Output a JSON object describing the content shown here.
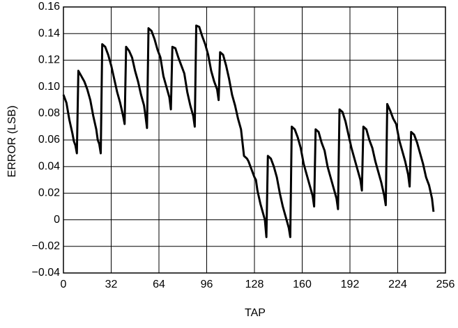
{
  "chart_data": {
    "type": "line",
    "xlabel": "TAP",
    "ylabel": "ERROR (LSB)",
    "xlim": [
      0,
      256
    ],
    "xticks": [
      0,
      32,
      64,
      96,
      128,
      160,
      192,
      224,
      256
    ],
    "ylim": [
      -0.04,
      0.16
    ],
    "yticks": [
      {
        "value": -0.04,
        "label": "−0.04"
      },
      {
        "value": -0.02,
        "label": "−0.02"
      },
      0,
      0.02,
      0.04,
      0.06,
      0.08,
      {
        "value": 0.1,
        "label": "0.10"
      },
      0.12,
      0.14,
      0.16
    ],
    "grid": true,
    "color": "#000000",
    "x": [
      0,
      2,
      4,
      6,
      7,
      8,
      9,
      10,
      12,
      14,
      16,
      18,
      20,
      22,
      23,
      24,
      25,
      26,
      28,
      30,
      32,
      34,
      36,
      38,
      40,
      41,
      42,
      44,
      46,
      48,
      50,
      52,
      54,
      55,
      56,
      57,
      59,
      61,
      63,
      65,
      67,
      69,
      71,
      72,
      73,
      75,
      77,
      79,
      81,
      83,
      85,
      87,
      88,
      89,
      91,
      93,
      95,
      97,
      99,
      101,
      103,
      104,
      105,
      107,
      109,
      111,
      113,
      115,
      117,
      119,
      120,
      121,
      123,
      124,
      126,
      128,
      129,
      130,
      132,
      134,
      135,
      136,
      137,
      139,
      141,
      143,
      145,
      147,
      149,
      151,
      152,
      153,
      155,
      157,
      159,
      161,
      163,
      165,
      167,
      168,
      169,
      171,
      173,
      175,
      177,
      179,
      181,
      183,
      184,
      185,
      187,
      189,
      191,
      193,
      195,
      197,
      199,
      200,
      201,
      203,
      205,
      207,
      209,
      211,
      213,
      215,
      216,
      217,
      219,
      221,
      223,
      225,
      227,
      229,
      231,
      232,
      233,
      235,
      237,
      239,
      241,
      243,
      245,
      247,
      248
    ],
    "values": [
      0.094,
      0.088,
      0.075,
      0.065,
      0.059,
      0.056,
      0.05,
      0.112,
      0.108,
      0.104,
      0.098,
      0.09,
      0.078,
      0.068,
      0.06,
      0.057,
      0.05,
      0.132,
      0.13,
      0.124,
      0.116,
      0.106,
      0.096,
      0.088,
      0.078,
      0.072,
      0.13,
      0.127,
      0.122,
      0.112,
      0.104,
      0.094,
      0.086,
      0.078,
      0.069,
      0.144,
      0.142,
      0.136,
      0.128,
      0.122,
      0.108,
      0.1,
      0.092,
      0.083,
      0.13,
      0.129,
      0.122,
      0.116,
      0.11,
      0.096,
      0.086,
      0.078,
      0.07,
      0.146,
      0.145,
      0.138,
      0.132,
      0.124,
      0.112,
      0.104,
      0.098,
      0.09,
      0.126,
      0.124,
      0.116,
      0.106,
      0.094,
      0.086,
      0.076,
      0.068,
      0.058,
      0.048,
      0.046,
      0.044,
      0.038,
      0.032,
      0.03,
      0.022,
      0.012,
      0.004,
      0,
      -0.013,
      0.048,
      0.046,
      0.04,
      0.032,
      0.02,
      0.01,
      0.002,
      -0.006,
      -0.013,
      0.07,
      0.068,
      0.062,
      0.054,
      0.042,
      0.034,
      0.026,
      0.018,
      0.01,
      0.068,
      0.066,
      0.058,
      0.052,
      0.04,
      0.032,
      0.024,
      0.016,
      0.008,
      0.083,
      0.081,
      0.074,
      0.064,
      0.054,
      0.046,
      0.038,
      0.03,
      0.022,
      0.07,
      0.068,
      0.06,
      0.054,
      0.044,
      0.036,
      0.028,
      0.018,
      0.011,
      0.087,
      0.082,
      0.076,
      0.072,
      0.06,
      0.052,
      0.044,
      0.034,
      0.025,
      0.066,
      0.064,
      0.058,
      0.05,
      0.042,
      0.032,
      0.026,
      0.016,
      0.006
    ]
  }
}
